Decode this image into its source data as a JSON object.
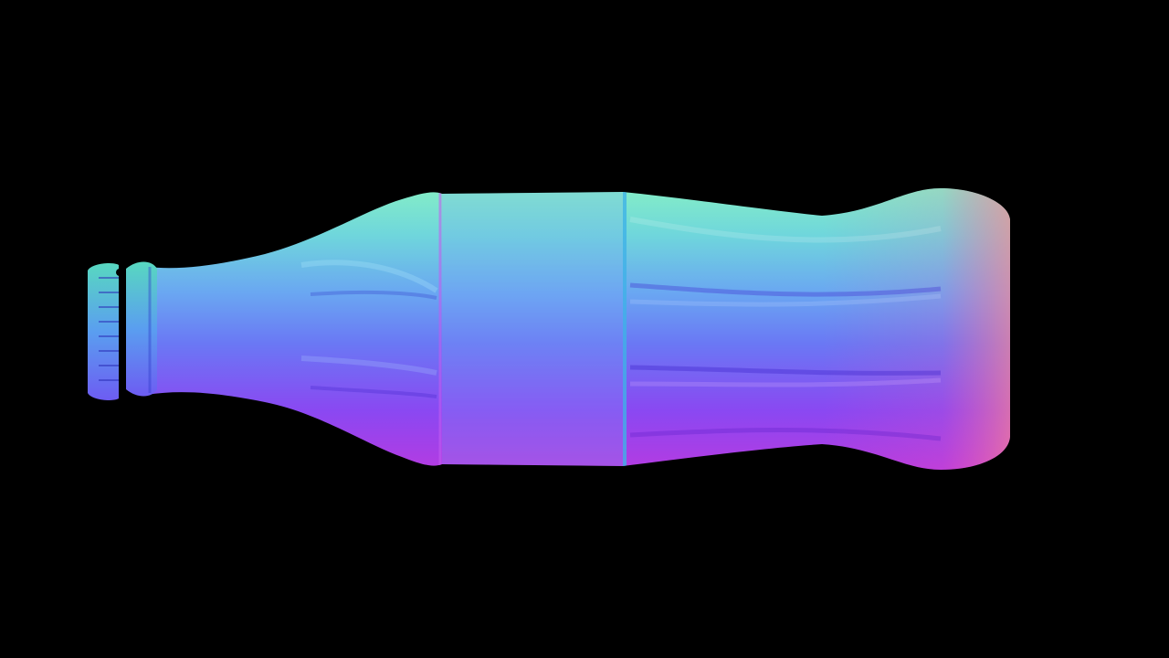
{
  "scene": {
    "subject": "bottle",
    "render_style": "normal-map",
    "orientation": "horizontal",
    "background_color": "#000000",
    "palette": {
      "top_edge": "#7fe6c8",
      "upper_mid": "#6aa8f0",
      "center": "#6b7ff5",
      "lower_mid": "#8a3ff0",
      "bottom_edge": "#c03ad8",
      "right_edge": "#f06aa0",
      "cap_teal": "#4fd2c8"
    },
    "icons": [
      "bottle-cap-icon"
    ]
  }
}
